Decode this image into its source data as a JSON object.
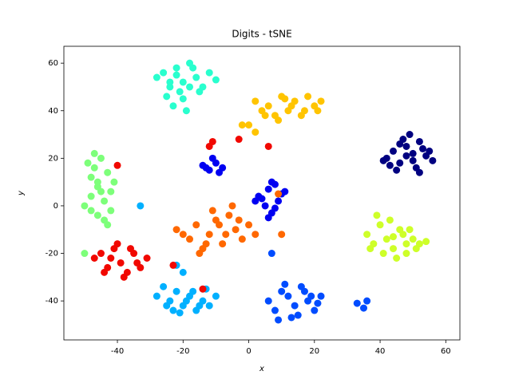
{
  "chart_data": {
    "type": "scatter",
    "title": "Digits - tSNE",
    "x_label": "x",
    "y_label": "y",
    "xlim": [
      -56.3,
      64.3
    ],
    "ylim": [
      -56.4,
      67.1
    ],
    "xticks": [
      -40,
      -20,
      0,
      20,
      40,
      60
    ],
    "yticks": [
      -40,
      -20,
      0,
      20,
      40,
      60
    ],
    "series": [
      {
        "color": "#000080",
        "x": [
          42,
          44,
          46,
          48,
          50,
          52,
          54,
          56,
          45,
          47,
          49,
          51,
          53,
          41,
          43,
          55,
          50,
          48,
          52,
          46
        ],
        "y": [
          20,
          23,
          18,
          25,
          22,
          27,
          21,
          19,
          15,
          28,
          30,
          16,
          24,
          19,
          17,
          23,
          19,
          21,
          14,
          26
        ]
      },
      {
        "color": "#0000f1",
        "x": [
          -14,
          -12,
          -10,
          -8,
          -11,
          -9,
          -13,
          4,
          6,
          8,
          10,
          5,
          7,
          9,
          3,
          11,
          6,
          8,
          2,
          7
        ],
        "y": [
          17,
          15,
          18,
          16,
          20,
          14,
          16,
          3,
          7,
          9,
          5,
          0,
          -3,
          2,
          4,
          6,
          -5,
          -1,
          2,
          10
        ]
      },
      {
        "color": "#004cff",
        "x": [
          6,
          8,
          10,
          12,
          14,
          16,
          18,
          20,
          22,
          9,
          13,
          17,
          21,
          11,
          15,
          19,
          33,
          35,
          36,
          7
        ],
        "y": [
          -40,
          -44,
          -36,
          -38,
          -42,
          -34,
          -40,
          -44,
          -38,
          -48,
          -47,
          -36,
          -41,
          -33,
          -46,
          -38,
          -41,
          -43,
          -40,
          -20
        ]
      },
      {
        "color": "#00b0ff",
        "x": [
          -28,
          -26,
          -24,
          -22,
          -20,
          -18,
          -16,
          -14,
          -12,
          -10,
          -25,
          -21,
          -17,
          -13,
          -23,
          -19,
          -15,
          -22,
          -20,
          -33
        ],
        "y": [
          -38,
          -34,
          -40,
          -36,
          -42,
          -38,
          -44,
          -40,
          -42,
          -38,
          -42,
          -45,
          -36,
          -35,
          -44,
          -40,
          -42,
          -25,
          -28,
          0
        ]
      },
      {
        "color": "#29ffce",
        "x": [
          -28,
          -26,
          -24,
          -22,
          -20,
          -18,
          -16,
          -14,
          -12,
          -25,
          -21,
          -23,
          -19,
          -17,
          -15,
          -22,
          -20,
          -24,
          -18,
          -10
        ],
        "y": [
          54,
          56,
          50,
          58,
          52,
          60,
          54,
          50,
          56,
          46,
          48,
          42,
          40,
          58,
          48,
          55,
          45,
          52,
          50,
          53
        ]
      },
      {
        "color": "#7dff7a",
        "x": [
          -50,
          -48,
          -46,
          -44,
          -42,
          -47,
          -45,
          -43,
          -49,
          -41,
          -46,
          -44,
          -48,
          -42,
          -47,
          -50,
          -45,
          -43,
          -48,
          -46
        ],
        "y": [
          0,
          4,
          8,
          2,
          6,
          16,
          20,
          14,
          18,
          10,
          -4,
          -6,
          12,
          -2,
          22,
          -20,
          6,
          -8,
          -2,
          10
        ]
      },
      {
        "color": "#ceff29",
        "x": [
          36,
          38,
          40,
          42,
          44,
          46,
          48,
          50,
          52,
          54,
          39,
          43,
          47,
          51,
          41,
          45,
          49,
          37,
          44,
          48
        ],
        "y": [
          -12,
          -16,
          -8,
          -14,
          -18,
          -10,
          -20,
          -14,
          -16,
          -15,
          -4,
          -6,
          -12,
          -18,
          -20,
          -22,
          -10,
          -18,
          -13,
          -16
        ]
      },
      {
        "color": "#ffc400",
        "x": [
          2,
          4,
          6,
          8,
          10,
          12,
          14,
          16,
          18,
          20,
          22,
          5,
          9,
          13,
          17,
          21,
          11,
          0,
          -2,
          2
        ],
        "y": [
          44,
          40,
          42,
          38,
          46,
          40,
          44,
          38,
          46,
          42,
          44,
          38,
          36,
          42,
          40,
          40,
          45,
          34,
          34,
          31
        ]
      },
      {
        "color": "#ff6800",
        "x": [
          -22,
          -20,
          -18,
          -16,
          -14,
          -12,
          -10,
          -8,
          -6,
          -4,
          -2,
          0,
          2,
          -15,
          -11,
          -7,
          -3,
          -9,
          -5,
          -13,
          10,
          9
        ],
        "y": [
          -10,
          -12,
          -14,
          -8,
          -18,
          -12,
          -6,
          -16,
          -4,
          -10,
          -14,
          -8,
          -12,
          -20,
          -2,
          -12,
          -6,
          -8,
          0,
          -16,
          -12,
          5
        ]
      },
      {
        "color": "#f10800",
        "x": [
          -47,
          -45,
          -43,
          -41,
          -39,
          -37,
          -35,
          -33,
          -31,
          -44,
          -40,
          -36,
          -42,
          -38,
          -34,
          -12,
          -11,
          -40,
          -23,
          -14,
          -3,
          6
        ],
        "y": [
          -22,
          -20,
          -26,
          -18,
          -24,
          -28,
          -20,
          -26,
          -22,
          -28,
          -16,
          -18,
          -22,
          -30,
          -24,
          25,
          27,
          17,
          -25,
          -35,
          28,
          25
        ]
      }
    ]
  }
}
